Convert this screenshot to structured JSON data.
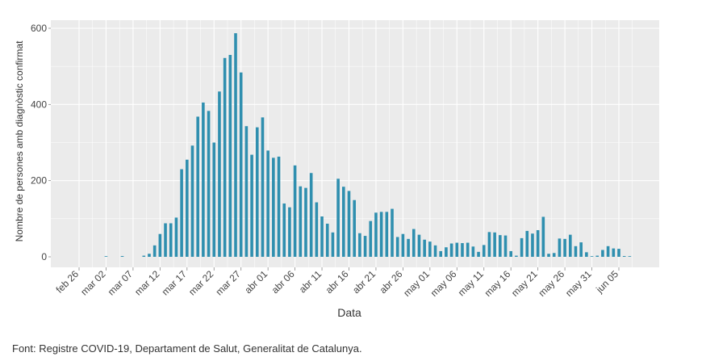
{
  "chart_data": {
    "type": "bar",
    "xlabel": "Data",
    "ylabel": "Nombre de persones amb diagnòstic confirmat",
    "ylim": [
      0,
      620
    ],
    "yticks": [
      0,
      200,
      400,
      600
    ],
    "grid": true,
    "bar_color": "#2f8faf",
    "panel_color": "#ebebeb",
    "x_start": "2020-02-26",
    "x_tick_labels": [
      "feb 26",
      "mar 02",
      "mar 07",
      "mar 12",
      "mar 17",
      "mar 22",
      "mar 27",
      "abr 01",
      "abr 06",
      "abr 11",
      "abr 16",
      "abr 21",
      "abr 26",
      "may 01",
      "may 06",
      "may 11",
      "may 16",
      "may 21",
      "may 26",
      "may 31",
      "jun 05"
    ],
    "dates": [
      "2020-02-26",
      "2020-02-27",
      "2020-02-28",
      "2020-02-29",
      "2020-03-01",
      "2020-03-02",
      "2020-03-03",
      "2020-03-04",
      "2020-03-05",
      "2020-03-06",
      "2020-03-07",
      "2020-03-08",
      "2020-03-09",
      "2020-03-10",
      "2020-03-11",
      "2020-03-12",
      "2020-03-13",
      "2020-03-14",
      "2020-03-15",
      "2020-03-16",
      "2020-03-17",
      "2020-03-18",
      "2020-03-19",
      "2020-03-20",
      "2020-03-21",
      "2020-03-22",
      "2020-03-23",
      "2020-03-24",
      "2020-03-25",
      "2020-03-26",
      "2020-03-27",
      "2020-03-28",
      "2020-03-29",
      "2020-03-30",
      "2020-03-31",
      "2020-04-01",
      "2020-04-02",
      "2020-04-03",
      "2020-04-04",
      "2020-04-05",
      "2020-04-06",
      "2020-04-07",
      "2020-04-08",
      "2020-04-09",
      "2020-04-10",
      "2020-04-11",
      "2020-04-12",
      "2020-04-13",
      "2020-04-14",
      "2020-04-15",
      "2020-04-16",
      "2020-04-17",
      "2020-04-18",
      "2020-04-19",
      "2020-04-20",
      "2020-04-21",
      "2020-04-22",
      "2020-04-23",
      "2020-04-24",
      "2020-04-25",
      "2020-04-26",
      "2020-04-27",
      "2020-04-28",
      "2020-04-29",
      "2020-04-30",
      "2020-05-01",
      "2020-05-02",
      "2020-05-03",
      "2020-05-04",
      "2020-05-05",
      "2020-05-06",
      "2020-05-07",
      "2020-05-08",
      "2020-05-09",
      "2020-05-10",
      "2020-05-11",
      "2020-05-12",
      "2020-05-13",
      "2020-05-14",
      "2020-05-15",
      "2020-05-16",
      "2020-05-17",
      "2020-05-18",
      "2020-05-19",
      "2020-05-20",
      "2020-05-21",
      "2020-05-22",
      "2020-05-23",
      "2020-05-24",
      "2020-05-25",
      "2020-05-26",
      "2020-05-27",
      "2020-05-28",
      "2020-05-29",
      "2020-05-30",
      "2020-05-31",
      "2020-06-01",
      "2020-06-02",
      "2020-06-03",
      "2020-06-04",
      "2020-06-05",
      "2020-06-06",
      "2020-06-07"
    ],
    "values": [
      0,
      0,
      0,
      0,
      0,
      1,
      0,
      0,
      2,
      0,
      0,
      0,
      3,
      8,
      30,
      60,
      88,
      88,
      103,
      230,
      255,
      292,
      368,
      405,
      383,
      300,
      434,
      522,
      530,
      587,
      484,
      343,
      268,
      340,
      366,
      279,
      260,
      263,
      140,
      130,
      240,
      185,
      181,
      220,
      143,
      106,
      87,
      64,
      205,
      184,
      173,
      149,
      62,
      55,
      94,
      116,
      118,
      118,
      126,
      52,
      60,
      47,
      73,
      58,
      45,
      40,
      30,
      15,
      25,
      35,
      37,
      36,
      37,
      27,
      13,
      31,
      65,
      64,
      57,
      56,
      15,
      3,
      49,
      68,
      61,
      70,
      105,
      8,
      10,
      48,
      47,
      58,
      28,
      38,
      12,
      1,
      3,
      18,
      28,
      22,
      21,
      2,
      1
    ]
  },
  "footer": {
    "source": "Font: Registre COVID-19, Departament de Salut, Generalitat de Catalunya."
  }
}
